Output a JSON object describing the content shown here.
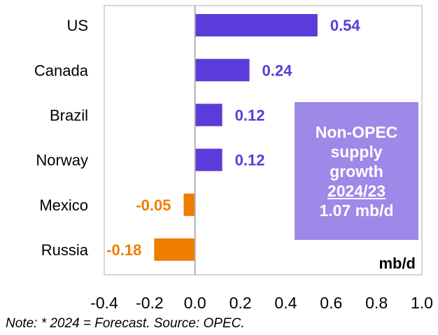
{
  "chart_data": {
    "type": "bar",
    "orientation": "horizontal",
    "categories": [
      "US",
      "Canada",
      "Brazil",
      "Norway",
      "Mexico",
      "Russia"
    ],
    "values": [
      0.54,
      0.24,
      0.12,
      0.12,
      -0.05,
      -0.18
    ],
    "data_labels": [
      "0.54",
      "0.24",
      "0.12",
      "0.12",
      "-0.05",
      "-0.18"
    ],
    "xlim": [
      -0.4,
      1.0
    ],
    "xticks": [
      "-0.4",
      "-0.2",
      "0.0",
      "0.2",
      "0.4",
      "0.6",
      "0.8",
      "1.0"
    ],
    "xtick_values": [
      -0.4,
      -0.2,
      0,
      0.2,
      0.4,
      0.6,
      0.8,
      1.0
    ],
    "unit_label": "mb/d",
    "grid": false,
    "colors": {
      "positive": "#5b3bd9",
      "negative": "#ef7d00",
      "box": "#9e88e8"
    },
    "annotation": {
      "line1": "Non-OPEC",
      "line2": "supply",
      "line3": "growth",
      "line4": "2024/23",
      "line5": "1.07 mb/d"
    }
  },
  "note": "Note: * 2024 = Forecast. Source: OPEC."
}
